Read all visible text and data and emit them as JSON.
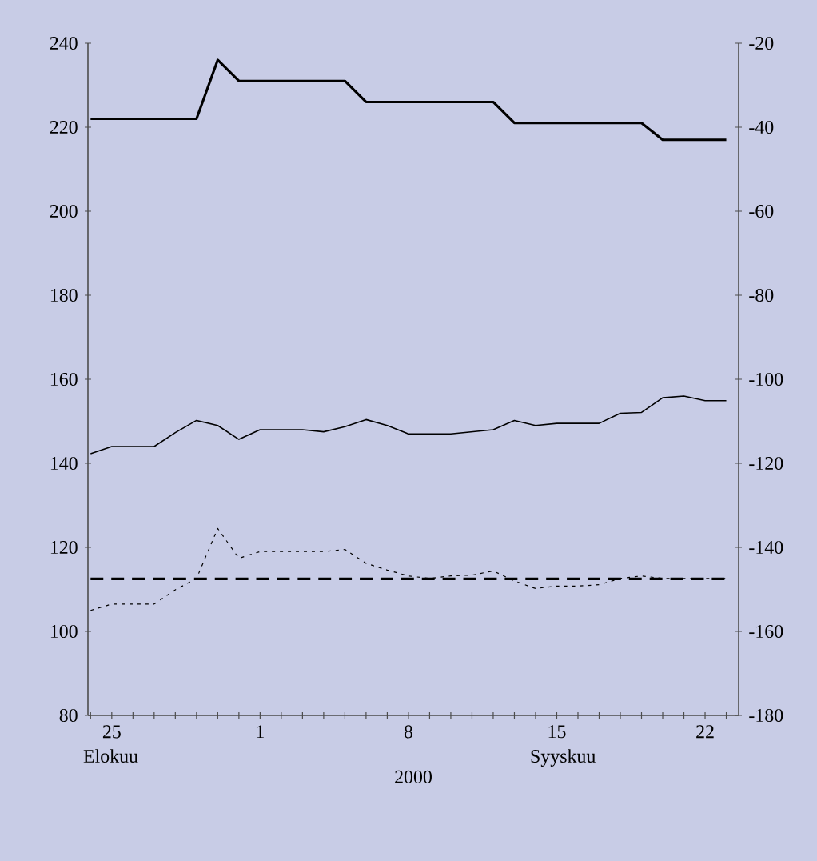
{
  "chart_data": {
    "type": "line",
    "xlabel": "2000",
    "x": [
      "2000-08-24",
      "2000-08-25",
      "2000-08-26",
      "2000-08-27",
      "2000-08-28",
      "2000-08-29",
      "2000-08-30",
      "2000-08-31",
      "2000-09-01",
      "2000-09-02",
      "2000-09-03",
      "2000-09-04",
      "2000-09-05",
      "2000-09-06",
      "2000-09-07",
      "2000-09-08",
      "2000-09-09",
      "2000-09-10",
      "2000-09-11",
      "2000-09-12",
      "2000-09-13",
      "2000-09-14",
      "2000-09-15",
      "2000-09-16",
      "2000-09-17",
      "2000-09-18",
      "2000-09-19",
      "2000-09-20",
      "2000-09-21",
      "2000-09-22",
      "2000-09-23"
    ],
    "series": [
      {
        "color": "#000000",
        "line_style": "solid",
        "values": [
          222,
          222,
          222,
          222,
          222,
          222,
          236,
          231,
          231,
          231,
          231,
          231,
          231,
          226,
          226,
          226,
          226,
          226,
          226,
          226,
          221,
          221,
          221,
          221,
          221,
          221,
          221,
          217,
          217,
          217,
          217
        ]
      },
      {
        "color": "#000000",
        "line_style": "solid",
        "values": [
          142.3,
          144,
          144,
          144,
          147.3,
          150.2,
          149,
          145.7,
          148,
          148,
          148,
          147.5,
          148.7,
          150.4,
          149,
          147,
          147,
          147,
          147.5,
          148,
          150.2,
          149,
          149.5,
          149.5,
          149.5,
          151.9,
          152.1,
          155.6,
          156,
          154.9,
          154.9
        ]
      },
      {
        "color": "#000000",
        "line_style": "dotted",
        "values": [
          105,
          106.5,
          106.5,
          106.5,
          109.9,
          112.6,
          124.5,
          117.4,
          119,
          119,
          119,
          119,
          119.5,
          116.2,
          114.6,
          113.2,
          112.6,
          113.2,
          113.4,
          114.4,
          112,
          110.2,
          110.8,
          110.8,
          111.1,
          112.6,
          113.2,
          112.6,
          112.6,
          112.6,
          112.6
        ]
      },
      {
        "color": "#000000",
        "line_style": "dashed",
        "values": [
          112.5,
          112.5,
          112.5,
          112.5,
          112.5,
          112.5,
          112.5,
          112.5,
          112.5,
          112.5,
          112.5,
          112.5,
          112.5,
          112.5,
          112.5,
          112.5,
          112.5,
          112.5,
          112.5,
          112.5,
          112.5,
          112.5,
          112.5,
          112.5,
          112.5,
          112.5,
          112.5,
          112.5,
          112.5,
          112.5,
          112.5
        ]
      }
    ],
    "xlim": [
      "2000-08-23T21:00",
      "2000-09-23T14:00"
    ],
    "xticks": [
      {
        "value": "2000-08-24",
        "label": null
      },
      {
        "value": "2000-08-25",
        "label": "25"
      },
      {
        "value": "2000-08-26",
        "label": null
      },
      {
        "value": "2000-08-27",
        "label": null
      },
      {
        "value": "2000-08-28",
        "label": null
      },
      {
        "value": "2000-08-29",
        "label": null
      },
      {
        "value": "2000-08-30",
        "label": null
      },
      {
        "value": "2000-08-31",
        "label": null
      },
      {
        "value": "2000-09-01",
        "label": "1"
      },
      {
        "value": "2000-09-02",
        "label": null
      },
      {
        "value": "2000-09-03",
        "label": null
      },
      {
        "value": "2000-09-04",
        "label": null
      },
      {
        "value": "2000-09-05",
        "label": null
      },
      {
        "value": "2000-09-06",
        "label": null
      },
      {
        "value": "2000-09-07",
        "label": null
      },
      {
        "value": "2000-09-08",
        "label": "8"
      },
      {
        "value": "2000-09-09",
        "label": null
      },
      {
        "value": "2000-09-10",
        "label": null
      },
      {
        "value": "2000-09-11",
        "label": null
      },
      {
        "value": "2000-09-12",
        "label": null
      },
      {
        "value": "2000-09-13",
        "label": null
      },
      {
        "value": "2000-09-14",
        "label": null
      },
      {
        "value": "2000-09-15",
        "label": "15"
      },
      {
        "value": "2000-09-16",
        "label": null
      },
      {
        "value": "2000-09-17",
        "label": null
      },
      {
        "value": "2000-09-18",
        "label": null
      },
      {
        "value": "2000-09-19",
        "label": null
      },
      {
        "value": "2000-09-20",
        "label": null
      },
      {
        "value": "2000-09-21",
        "label": null
      },
      {
        "value": "2000-09-22",
        "label": "22"
      },
      {
        "value": "2000-09-23",
        "label": null
      }
    ],
    "ylim": [
      80,
      240
    ],
    "yticks": [
      80,
      100,
      120,
      140,
      160,
      180,
      200,
      220,
      240
    ],
    "y2lim": [
      -180,
      -20
    ],
    "y2ticks": [
      -180,
      -160,
      -140,
      -120,
      -100,
      -80,
      -60,
      -40,
      -20
    ],
    "annotations": [
      "Elokuu",
      "Syyskuu"
    ],
    "grid": false
  }
}
